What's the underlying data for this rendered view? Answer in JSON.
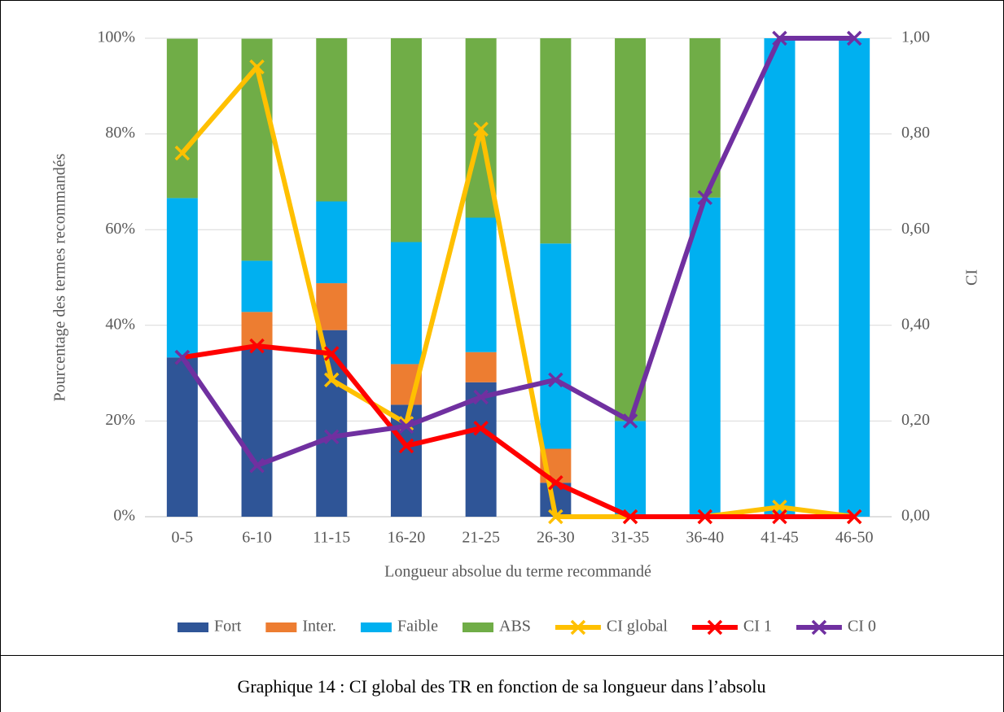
{
  "chart_data": {
    "type": "bar",
    "stacked": true,
    "caption": "Graphique 14 : CI global des TR en fonction de sa longueur dans l’absolu",
    "x_label": "Longueur absolue du terme recommandé",
    "y_label": "Pourcentage des termes recommandés",
    "y2_label": "CI",
    "categories": [
      "0-5",
      "6-10",
      "11-15",
      "16-20",
      "21-25",
      "26-30",
      "31-35",
      "36-40",
      "41-45",
      "46-50"
    ],
    "series": [
      {
        "name": "Fort",
        "type": "bar",
        "color": "#2f5597",
        "values": [
          33.3,
          35.7,
          39.0,
          23.4,
          28.1,
          7.1,
          0,
          0,
          0,
          0
        ]
      },
      {
        "name": "Inter.",
        "type": "bar",
        "color": "#ed7d31",
        "values": [
          0,
          7.1,
          9.8,
          8.5,
          6.3,
          7.1,
          0,
          0,
          0,
          0
        ]
      },
      {
        "name": "Faible",
        "type": "bar",
        "color": "#00b0f0",
        "values": [
          33.3,
          10.7,
          17.1,
          25.5,
          28.1,
          42.9,
          20,
          66.7,
          100,
          100
        ]
      },
      {
        "name": "ABS",
        "type": "bar",
        "color": "#70ad47",
        "values": [
          33.3,
          46.4,
          34.1,
          42.6,
          37.5,
          42.9,
          80,
          33.3,
          0,
          0
        ]
      },
      {
        "name": "CI global",
        "type": "line",
        "axis": "y2",
        "color": "#ffc000",
        "values": [
          0.76,
          0.94,
          0.286,
          0.195,
          0.81,
          0,
          0,
          0,
          0.02,
          0
        ]
      },
      {
        "name": "CI 1",
        "type": "line",
        "axis": "y2",
        "color": "#ff0000",
        "values": [
          0.333,
          0.357,
          0.341,
          0.148,
          0.185,
          0.071,
          0,
          0,
          0,
          0
        ]
      },
      {
        "name": "CI 0",
        "type": "line",
        "axis": "y2",
        "color": "#7030a0",
        "values": [
          0.333,
          0.107,
          0.167,
          0.189,
          0.25,
          0.286,
          0.2,
          0.667,
          1,
          1
        ]
      }
    ],
    "ylim": [
      0,
      100
    ],
    "yticks": [
      {
        "value": 0,
        "label": "0%"
      },
      {
        "value": 20,
        "label": "20%"
      },
      {
        "value": 40,
        "label": "40%"
      },
      {
        "value": 60,
        "label": "60%"
      },
      {
        "value": 80,
        "label": "80%"
      },
      {
        "value": 100,
        "label": "100%"
      }
    ],
    "y2lim": [
      0,
      1
    ],
    "y2ticks": [
      {
        "value": 0,
        "label": "0,00"
      },
      {
        "value": 0.2,
        "label": "0,20"
      },
      {
        "value": 0.4,
        "label": "0,40"
      },
      {
        "value": 0.6,
        "label": "0,60"
      },
      {
        "value": 0.8,
        "label": "0,80"
      },
      {
        "value": 1,
        "label": "1,00"
      }
    ],
    "grid": true,
    "legend": "bottom"
  }
}
